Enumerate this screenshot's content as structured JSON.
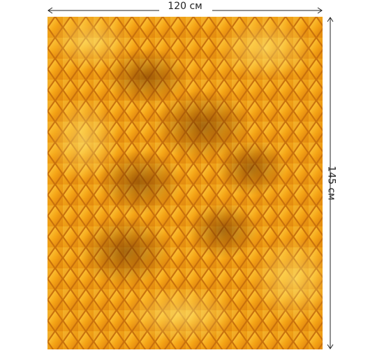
{
  "width_label": "120 см",
  "height_label": "145 см"
}
